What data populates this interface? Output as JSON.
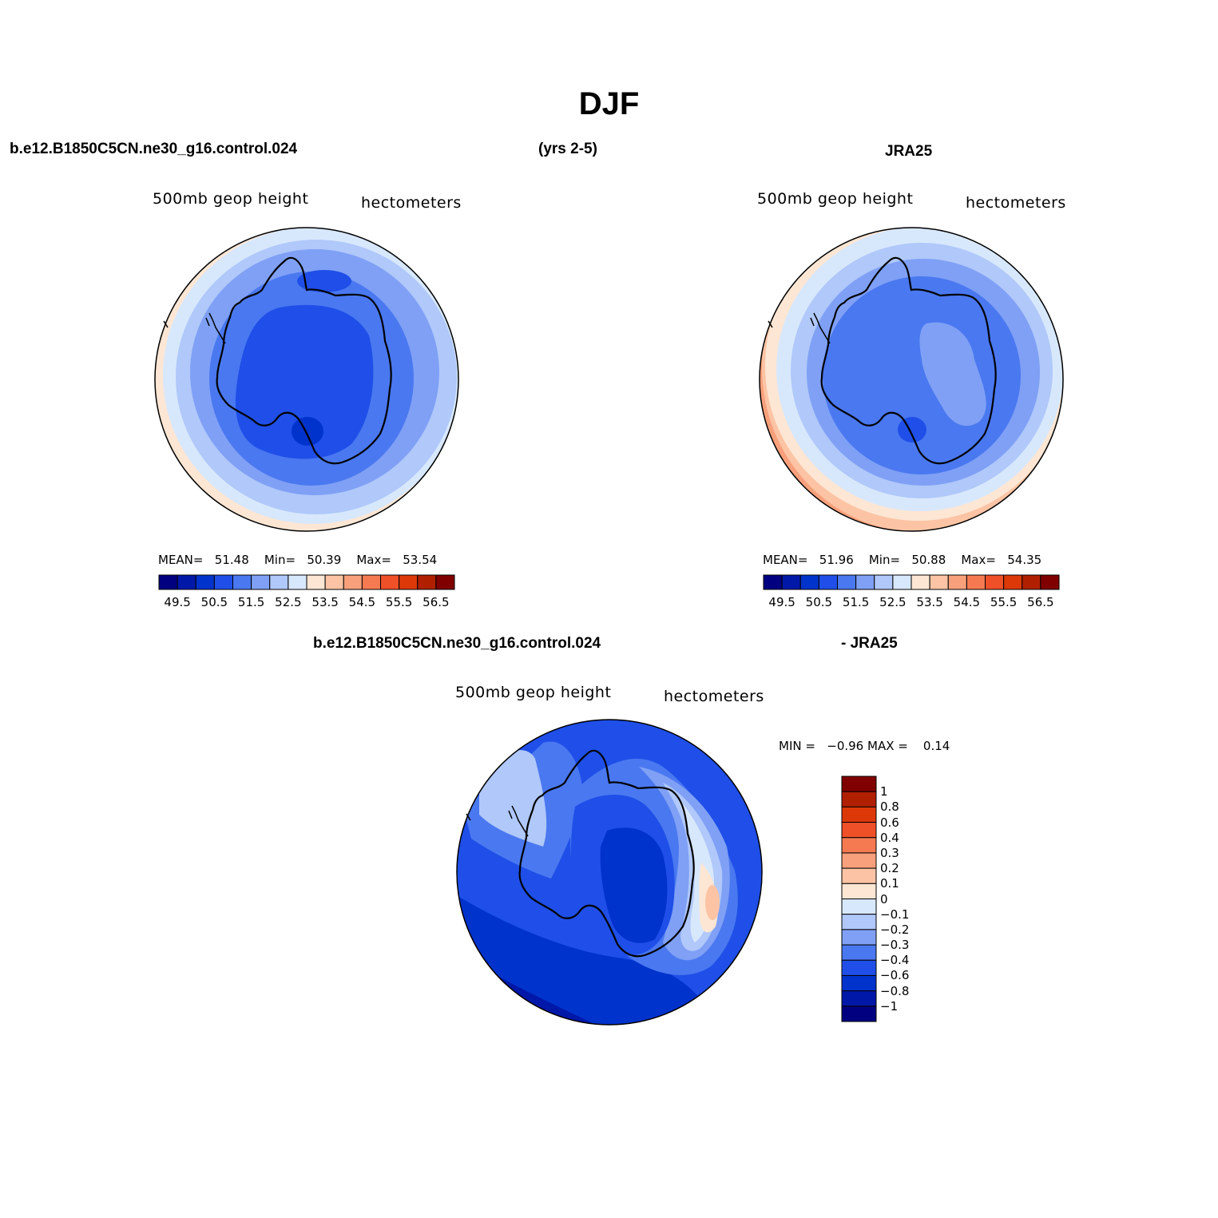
{
  "figure": {
    "title": "DJF",
    "header_left": "b.e12.B1850C5CN.ne30_g16.control.024",
    "header_center": "(yrs 2-5)",
    "header_right": "JRA25",
    "diff_header_left": "b.e12.B1850C5CN.ne30_g16.control.024",
    "diff_header_right": "- JRA25"
  },
  "panels": {
    "model": {
      "left_label": "500mb  geop  height",
      "right_label": "hectometers",
      "mean_label": "MEAN=",
      "mean_value": "51.48",
      "min_label": "Min=",
      "min_value": "50.39",
      "max_label": "Max=",
      "max_value": "53.54"
    },
    "obs": {
      "left_label": "500mb  geop  height",
      "right_label": "hectometers",
      "mean_label": "MEAN=",
      "mean_value": "51.96",
      "min_label": "Min=",
      "min_value": "50.88",
      "max_label": "Max=",
      "max_value": "54.35"
    },
    "diff": {
      "left_label": "500mb  geop  height",
      "right_label": "hectometers",
      "min_label": "MIN =",
      "min_value": "−0.96",
      "max_label": "MAX =",
      "max_value": "0.14"
    }
  },
  "colorbars": {
    "horizontal": {
      "colors": [
        "#000080",
        "#0018a8",
        "#0033cc",
        "#1f4fe8",
        "#4a78f0",
        "#7fa0f5",
        "#b0c8fa",
        "#d8e8fc",
        "#fde6d4",
        "#fcc4a4",
        "#f8a07c",
        "#f57a52",
        "#f05028",
        "#dc3808",
        "#b02000",
        "#800000"
      ],
      "tick_labels": [
        "49.5",
        "50.5",
        "51.5",
        "52.5",
        "53.5",
        "54.5",
        "55.5",
        "56.5"
      ]
    },
    "vertical": {
      "colors_top_to_bottom": [
        "#800000",
        "#b02000",
        "#dc3808",
        "#f05028",
        "#f57a52",
        "#f8a07c",
        "#fcc4a4",
        "#fde6d4",
        "#d8e8fc",
        "#b0c8fa",
        "#7fa0f5",
        "#4a78f0",
        "#1f4fe8",
        "#0033cc",
        "#0018a8",
        "#000080"
      ],
      "tick_labels": [
        "1",
        "0.8",
        "0.6",
        "0.4",
        "0.3",
        "0.2",
        "0.1",
        "0",
        "−0.1",
        "−0.2",
        "−0.3",
        "−0.4",
        "−0.6",
        "−0.8",
        "−1"
      ]
    }
  }
}
